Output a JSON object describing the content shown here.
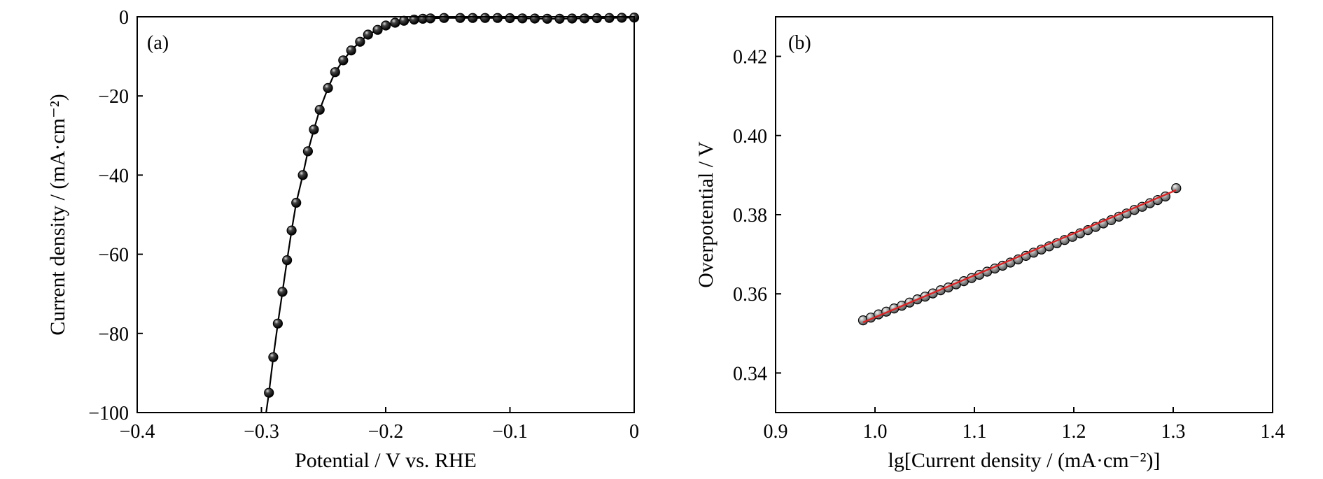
{
  "chart_data": [
    {
      "type": "line",
      "panel_label": "(a)",
      "xlabel": "Potential / V vs. RHE",
      "ylabel": "Current density / (mA·cm⁻²)",
      "xlim": [
        -0.4,
        0
      ],
      "ylim": [
        -100,
        0
      ],
      "x_ticks": [
        -0.4,
        -0.3,
        -0.2,
        -0.1,
        0
      ],
      "x_tick_labels": [
        "−0.4",
        "−0.3",
        "−0.2",
        "−0.1",
        "0"
      ],
      "y_ticks": [
        -100,
        -80,
        -60,
        -40,
        -20,
        0
      ],
      "y_tick_labels": [
        "−100",
        "−80",
        "−60",
        "−40",
        "−20",
        "0"
      ],
      "grid": false,
      "series": [
        {
          "marker": "filled-circle",
          "color": "#000000",
          "x": [
            -0.294,
            -0.2905,
            -0.2868,
            -0.2831,
            -0.2794,
            -0.2757,
            -0.272,
            -0.2667,
            -0.2626,
            -0.2578,
            -0.2531,
            -0.2464,
            -0.2407,
            -0.2342,
            -0.2278,
            -0.2206,
            -0.2142,
            -0.2065,
            -0.1999,
            -0.1924,
            -0.1853,
            -0.1771,
            -0.1701,
            -0.164,
            -0.153,
            -0.14,
            -0.13,
            -0.12,
            -0.11,
            -0.1,
            -0.09,
            -0.08,
            -0.07,
            -0.06,
            -0.05,
            -0.04,
            -0.03,
            -0.02,
            -0.01,
            0
          ],
          "y": [
            -95,
            -86,
            -77.5,
            -69.5,
            -61.5,
            -54,
            -47,
            -40,
            -34,
            -28.5,
            -23.5,
            -18,
            -14,
            -11,
            -8.5,
            -6.3,
            -4.5,
            -3.3,
            -2.2,
            -1.5,
            -1.0,
            -0.7,
            -0.5,
            -0.4,
            -0.3,
            -0.3,
            -0.3,
            -0.3,
            -0.3,
            -0.35,
            -0.4,
            -0.45,
            -0.5,
            -0.5,
            -0.45,
            -0.4,
            -0.35,
            -0.3,
            -0.25,
            -0.2
          ]
        }
      ]
    },
    {
      "type": "scatter",
      "panel_label": "(b)",
      "xlabel": "lg[Current density / (mA·cm⁻²)]",
      "ylabel": "Overpotential / V",
      "xlim": [
        0.9,
        1.4
      ],
      "ylim": [
        0.33,
        0.43
      ],
      "x_ticks": [
        0.9,
        1.0,
        1.1,
        1.2,
        1.3,
        1.4
      ],
      "x_tick_labels": [
        "0.9",
        "1.0",
        "1.1",
        "1.2",
        "1.3",
        "1.4"
      ],
      "y_ticks": [
        0.34,
        0.36,
        0.38,
        0.4,
        0.42
      ],
      "y_tick_labels": [
        "0.34",
        "0.36",
        "0.38",
        "0.40",
        "0.42"
      ],
      "grid": false,
      "series": [
        {
          "marker": "gray-circle",
          "color": "#000000",
          "x": [
            0.988,
            0.9958,
            1.0036,
            1.0114,
            1.0192,
            1.027,
            1.0348,
            1.0426,
            1.0504,
            1.0582,
            1.066,
            1.0738,
            1.0816,
            1.0894,
            1.0972,
            1.105,
            1.1128,
            1.1206,
            1.1284,
            1.1362,
            1.144,
            1.1518,
            1.1596,
            1.1674,
            1.1752,
            1.183,
            1.1908,
            1.1986,
            1.2064,
            1.2142,
            1.222,
            1.2298,
            1.2376,
            1.2454,
            1.2532,
            1.261,
            1.2688,
            1.2766,
            1.2844,
            1.2922,
            1.303
          ],
          "y": [
            0.3533,
            0.354,
            0.3548,
            0.3555,
            0.3563,
            0.357,
            0.3578,
            0.3586,
            0.3593,
            0.3601,
            0.3609,
            0.3616,
            0.3624,
            0.3632,
            0.364,
            0.3648,
            0.3656,
            0.3664,
            0.3671,
            0.3679,
            0.3687,
            0.3696,
            0.3704,
            0.3712,
            0.372,
            0.3728,
            0.3736,
            0.3744,
            0.3753,
            0.3761,
            0.3769,
            0.3778,
            0.3786,
            0.3795,
            0.3803,
            0.3812,
            0.382,
            0.3829,
            0.3837,
            0.3846,
            0.3867
          ]
        },
        {
          "kind": "fit-line",
          "color": "#d62728",
          "x": [
            0.988,
            1.303
          ],
          "y": [
            0.3528,
            0.3862
          ]
        }
      ]
    }
  ]
}
